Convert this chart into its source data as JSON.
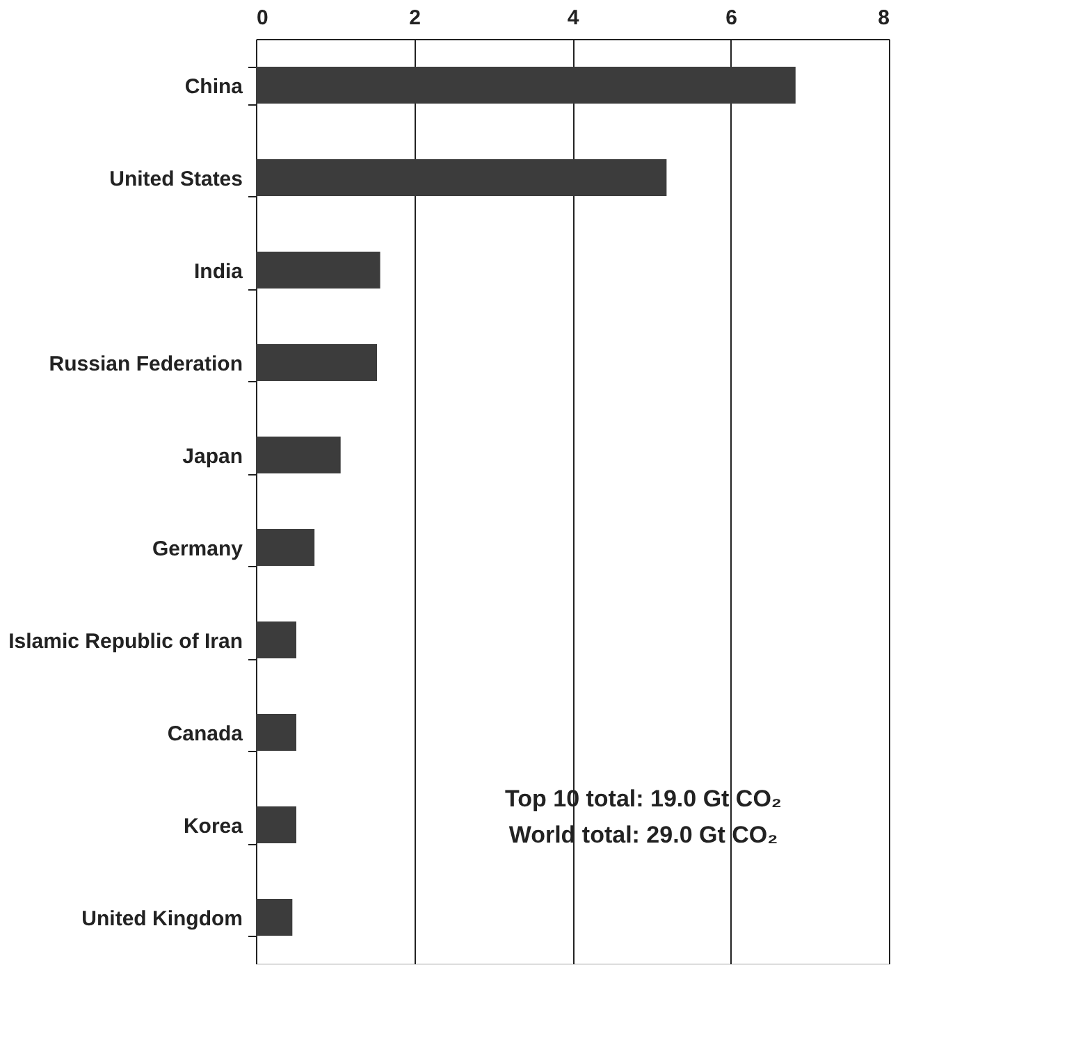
{
  "chart_data": {
    "type": "bar",
    "orientation": "horizontal",
    "categories": [
      "China",
      "United States",
      "India",
      "Russian Federation",
      "Japan",
      "Germany",
      "Islamic Republic of Iran",
      "Canada",
      "Korea",
      "United Kingdom"
    ],
    "values": [
      6.82,
      5.19,
      1.57,
      1.53,
      1.07,
      0.74,
      0.51,
      0.51,
      0.51,
      0.46
    ],
    "color": "#3c3c3c",
    "xlim": [
      0,
      8
    ],
    "xticks": [
      0,
      2,
      4,
      6,
      8
    ],
    "grid": "x",
    "annotations": [
      "Top 10 total:  19.0 Gt CO₂",
      "World total:   29.0 Gt CO₂"
    ]
  }
}
